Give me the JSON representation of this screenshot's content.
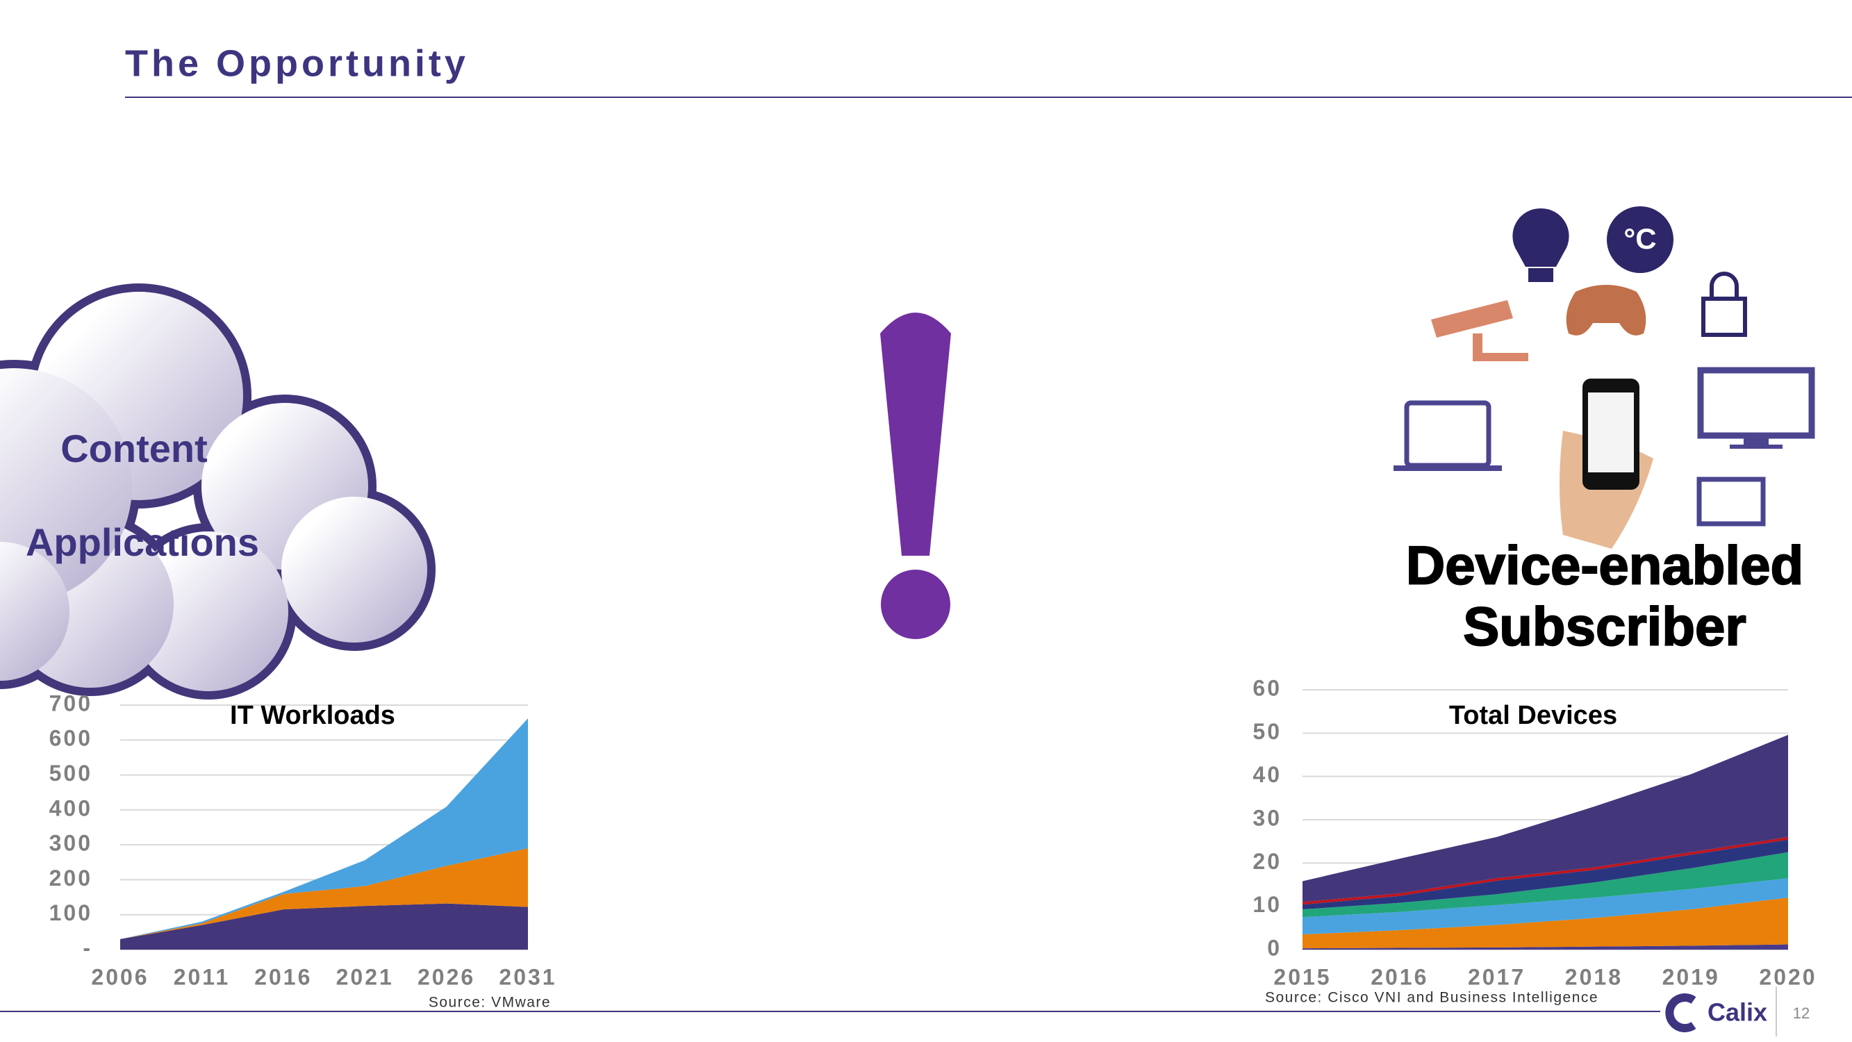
{
  "header": {
    "title": "The Opportunity"
  },
  "cloud": {
    "lines": [
      "Content",
      "Applications"
    ]
  },
  "devices": {
    "thermostat": "°C",
    "caption": [
      "Device-enabled",
      "Subscriber"
    ]
  },
  "footer": {
    "brand": "Calix",
    "page": "12"
  },
  "chart_data": [
    {
      "type": "area",
      "stacked": true,
      "title": "IT Workloads",
      "source": "Source: VMware",
      "x": [
        2006,
        2011,
        2016,
        2021,
        2026,
        2031
      ],
      "xlim": [
        2006,
        2031
      ],
      "ylim": [
        0,
        700
      ],
      "yticks": [
        {
          "value": 0,
          "label": "-"
        },
        100,
        200,
        300,
        400,
        500,
        600,
        700
      ],
      "grid": true,
      "series": [
        {
          "color": "#44367a",
          "values": [
            30,
            70,
            115,
            125,
            132,
            122
          ]
        },
        {
          "color": "#e8800a",
          "values": [
            0,
            5,
            44,
            57,
            108,
            168
          ]
        },
        {
          "color": "#4aa3df",
          "values": [
            0,
            5,
            6,
            74,
            169,
            372
          ]
        }
      ]
    },
    {
      "type": "area",
      "stacked": true,
      "title": "Total Devices",
      "source": "Source: Cisco VNI and Business Intelligence",
      "x": [
        2015,
        2016,
        2017,
        2018,
        2019,
        2020
      ],
      "xlim": [
        2015,
        2020
      ],
      "ylim": [
        0,
        60
      ],
      "yticks": [
        0,
        10,
        20,
        30,
        40,
        50,
        60
      ],
      "grid": true,
      "series": [
        {
          "color": "#4a3a8a",
          "values": [
            0.3,
            0.4,
            0.5,
            0.7,
            0.9,
            1.2
          ]
        },
        {
          "color": "#e8800a",
          "values": [
            3.2,
            4.1,
            5.2,
            6.6,
            8.4,
            10.8
          ]
        },
        {
          "color": "#4aa3df",
          "values": [
            4,
            4.2,
            4.6,
            4.7,
            4.7,
            4.5
          ]
        },
        {
          "color": "#22a57a",
          "values": [
            1.8,
            2.1,
            2.5,
            3.5,
            4.8,
            6
          ]
        },
        {
          "color": "#2a3580",
          "values": [
            1.1,
            1.6,
            3.1,
            2.9,
            3.1,
            2.9
          ]
        },
        {
          "color": "#c0141c",
          "values": [
            0.6,
            0.6,
            0.6,
            0.6,
            0.6,
            0.6
          ]
        },
        {
          "color": "#44367a",
          "values": [
            4.8,
            8,
            9.5,
            14,
            18,
            23.6
          ]
        }
      ]
    }
  ]
}
